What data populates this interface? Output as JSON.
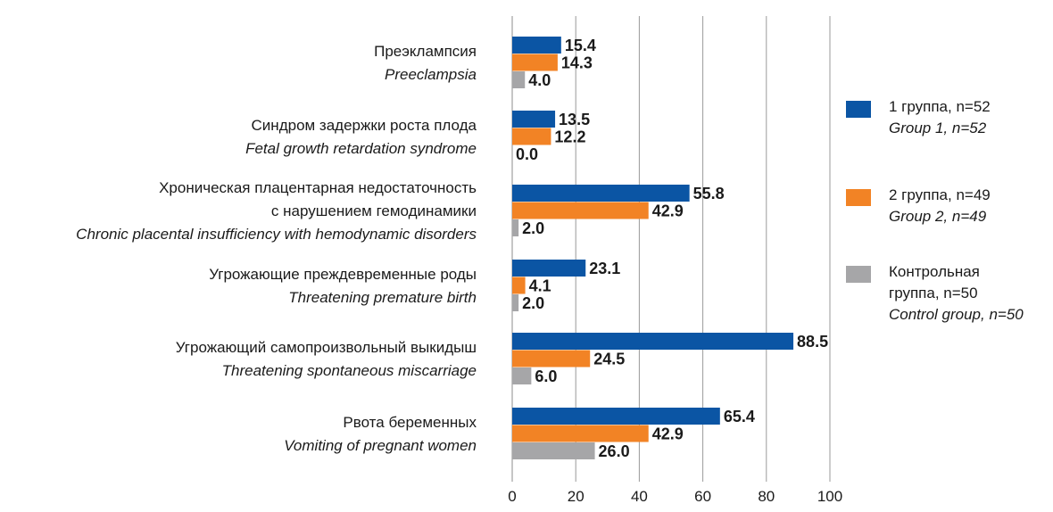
{
  "chart_data": {
    "type": "bar",
    "orientation": "horizontal",
    "title": "",
    "xlabel": "",
    "ylabel": "",
    "xlim": [
      0,
      100
    ],
    "ticks": [
      0,
      20,
      40,
      60,
      80,
      100
    ],
    "grid": true,
    "legend_position": "right",
    "categories": [
      {
        "ru": [
          "Преэклампсия"
        ],
        "en": [
          "Preeclampsia"
        ]
      },
      {
        "ru": [
          "Синдром задержки роста плода"
        ],
        "en": [
          "Fetal growth retardation syndrome"
        ]
      },
      {
        "ru": [
          "Хроническая плацентарная недостаточность",
          "с нарушением гемодинамики"
        ],
        "en": [
          "Chronic placental insufficiency with hemodynamic disorders"
        ]
      },
      {
        "ru": [
          "Угрожающие преждевременные роды"
        ],
        "en": [
          "Threatening premature birth"
        ]
      },
      {
        "ru": [
          "Угрожающий самопроизвольный выкидыш"
        ],
        "en": [
          "Threatening spontaneous miscarriage"
        ]
      },
      {
        "ru": [
          "Рвота беременных"
        ],
        "en": [
          "Vomiting of pregnant women"
        ]
      }
    ],
    "series": [
      {
        "name_ru": [
          "1 группа, n=52"
        ],
        "name_en": "Group 1, n=52",
        "color": "#0b55a4",
        "values": [
          15.4,
          13.5,
          55.8,
          23.1,
          88.5,
          65.4
        ]
      },
      {
        "name_ru": [
          "2 группа, n=49"
        ],
        "name_en": "Group 2, n=49",
        "color": "#f28325",
        "values": [
          14.3,
          12.2,
          42.9,
          4.1,
          24.5,
          42.9
        ]
      },
      {
        "name_ru": [
          "Контрольная",
          "группа, n=50"
        ],
        "name_en": "Control group, n=50",
        "color": "#a6a6a8",
        "values": [
          4.0,
          0.0,
          2.0,
          2.0,
          6.0,
          26.0
        ]
      }
    ]
  }
}
